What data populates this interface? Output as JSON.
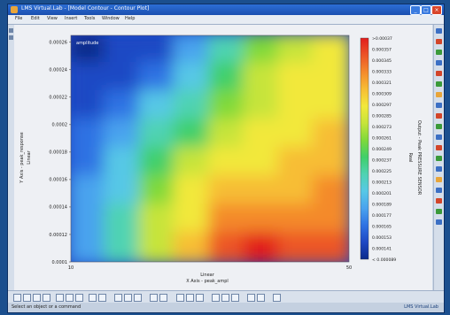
{
  "window": {
    "title": "LMS Virtual.Lab - [Model Contour - Contour Plot]",
    "buttons": [
      "_",
      "□",
      "×"
    ]
  },
  "menu": [
    "File",
    "Edit",
    "View",
    "Insert",
    "Tools",
    "Window",
    "Help"
  ],
  "colors": {
    "titlebar": "#1a4fb0",
    "frame": "#1b4f8e",
    "contour_low": "#0b2a8a",
    "contour_high": "#e21d1d"
  },
  "chart_data": {
    "type": "heatmap",
    "annotation": "amplitude",
    "xlabel": "X Axis - peak_ampl",
    "xscale": "Linear",
    "ylabel": "Y Axis - peak_response",
    "yscale": "Linear",
    "xlim": [
      10,
      50
    ],
    "ylim": [
      0.0001,
      0.000265
    ],
    "x_ticks": [
      "10",
      "50"
    ],
    "y_ticks": [
      "0.0001",
      "0.00012",
      "0.00014",
      "0.00016",
      "0.00018",
      "0.0002",
      "0.00022",
      "0.00024",
      "0.00026"
    ],
    "legend_title": "Real",
    "legend_subtitle": "Output - Peak PRESSURE SENSOR",
    "legend_values": [
      ">0.00037",
      "0.000357",
      "0.000345",
      "0.000333",
      "0.000321",
      "0.000309",
      "0.000297",
      "0.000285",
      "0.000273",
      "0.000261",
      "0.000249",
      "0.000237",
      "0.000225",
      "0.000213",
      "0.000201",
      "0.000189",
      "0.000177",
      "0.000165",
      "0.000153",
      "0.000141",
      "< 0.000089"
    ],
    "colormap": [
      "#0b2a8a",
      "#1e48c4",
      "#2f72e3",
      "#4aa3ee",
      "#57c8e6",
      "#4fd3b2",
      "#3fcf6a",
      "#7fd93a",
      "#c6e43a",
      "#f2e83a",
      "#f7bd34",
      "#f48a2c",
      "#ec5426",
      "#e21d1d"
    ],
    "grid_points": [
      [
        0.0,
        0.05,
        0.1,
        0.22,
        0.4,
        0.55,
        0.62,
        0.66
      ],
      [
        0.05,
        0.1,
        0.18,
        0.3,
        0.48,
        0.6,
        0.66,
        0.7
      ],
      [
        0.08,
        0.16,
        0.28,
        0.4,
        0.52,
        0.62,
        0.7,
        0.72
      ],
      [
        0.12,
        0.24,
        0.38,
        0.48,
        0.58,
        0.66,
        0.72,
        0.74
      ],
      [
        0.16,
        0.3,
        0.46,
        0.6,
        0.68,
        0.72,
        0.76,
        0.78
      ],
      [
        0.2,
        0.34,
        0.52,
        0.66,
        0.74,
        0.78,
        0.8,
        0.82
      ],
      [
        0.22,
        0.38,
        0.58,
        0.72,
        0.82,
        0.86,
        0.86,
        0.84
      ],
      [
        0.24,
        0.4,
        0.62,
        0.8,
        0.92,
        1.0,
        0.95,
        0.9
      ]
    ]
  },
  "status": {
    "left": "Select an object or a command",
    "brand": "LMS Virtual.Lab"
  }
}
